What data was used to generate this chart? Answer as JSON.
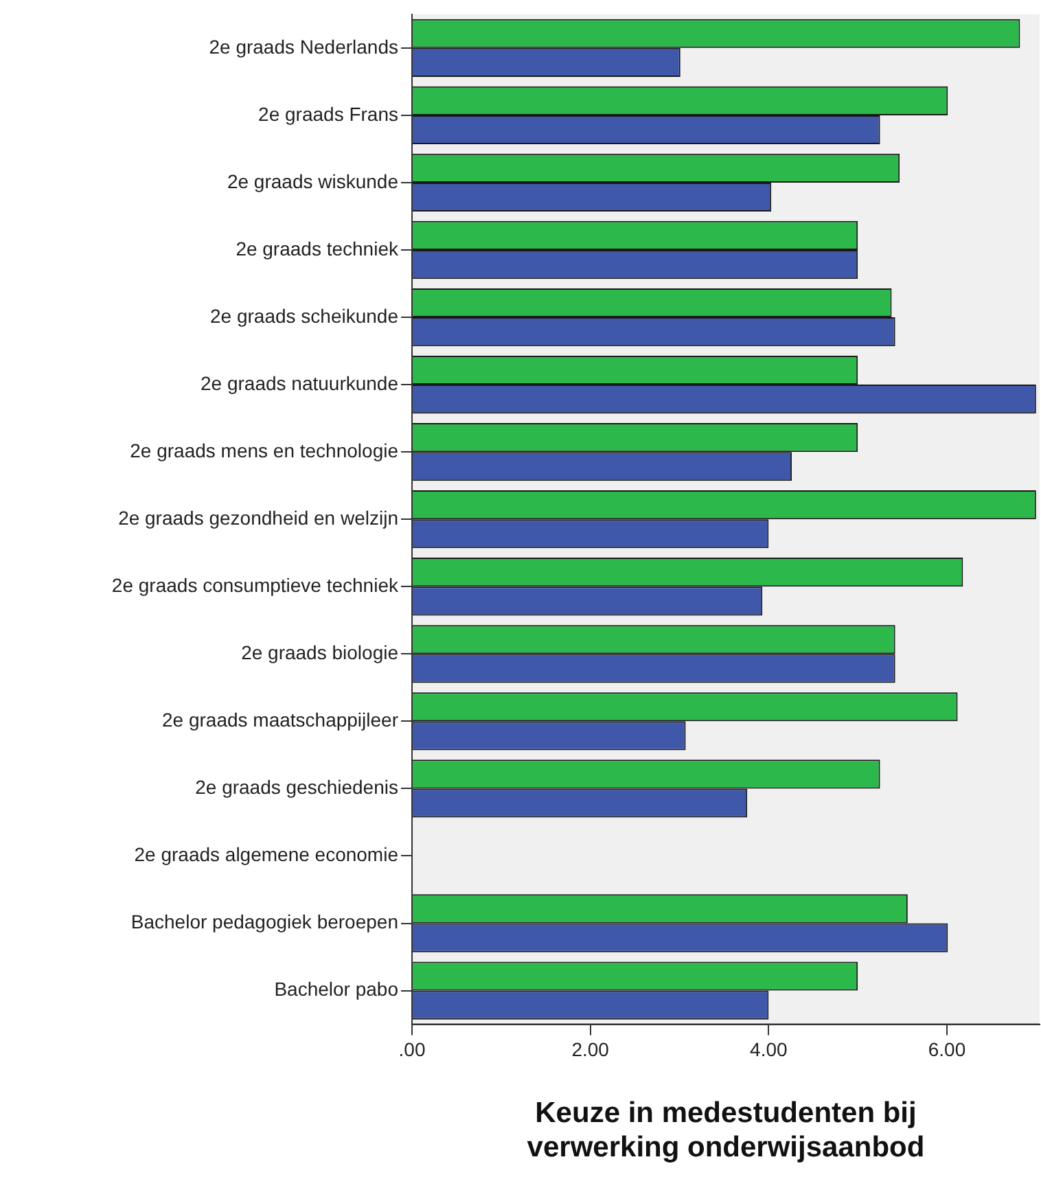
{
  "chart_data": {
    "type": "bar",
    "orientation": "horizontal",
    "xlabel": "Keuze in medestudenten bij verwerking onderwijsaanbod",
    "categories": [
      "2e graads Nederlands",
      "2e graads Frans",
      "2e graads wiskunde",
      "2e graads techniek",
      "2e graads scheikunde",
      "2e graads natuurkunde",
      "2e graads mens en technologie",
      "2e graads gezondheid en welzijn",
      "2e graads consumptieve techniek",
      "2e graads biologie",
      "2e graads maatschappijleer",
      "2e graads geschiedenis",
      "2e graads algemene economie",
      "Bachelor pedagogiek beroepen",
      "Bachelor pabo"
    ],
    "series": [
      {
        "color": "#2db84b",
        "values": [
          6.82,
          6.01,
          5.47,
          5.0,
          5.38,
          5.0,
          5.0,
          7.0,
          6.18,
          5.42,
          6.12,
          5.25,
          null,
          5.56,
          5.0
        ]
      },
      {
        "color": "#3f58aa",
        "values": [
          3.01,
          5.25,
          4.03,
          5.0,
          5.42,
          7.0,
          4.26,
          4.0,
          3.93,
          5.42,
          3.07,
          3.76,
          null,
          6.01,
          4.0
        ]
      }
    ],
    "xlim": [
      0,
      7.04
    ],
    "xticks": [
      {
        "value": 0,
        "label": ".00"
      },
      {
        "value": 2,
        "label": "2.00"
      },
      {
        "value": 4,
        "label": "4.00"
      },
      {
        "value": 6,
        "label": "6.00"
      }
    ],
    "grid": false,
    "legend": false
  }
}
